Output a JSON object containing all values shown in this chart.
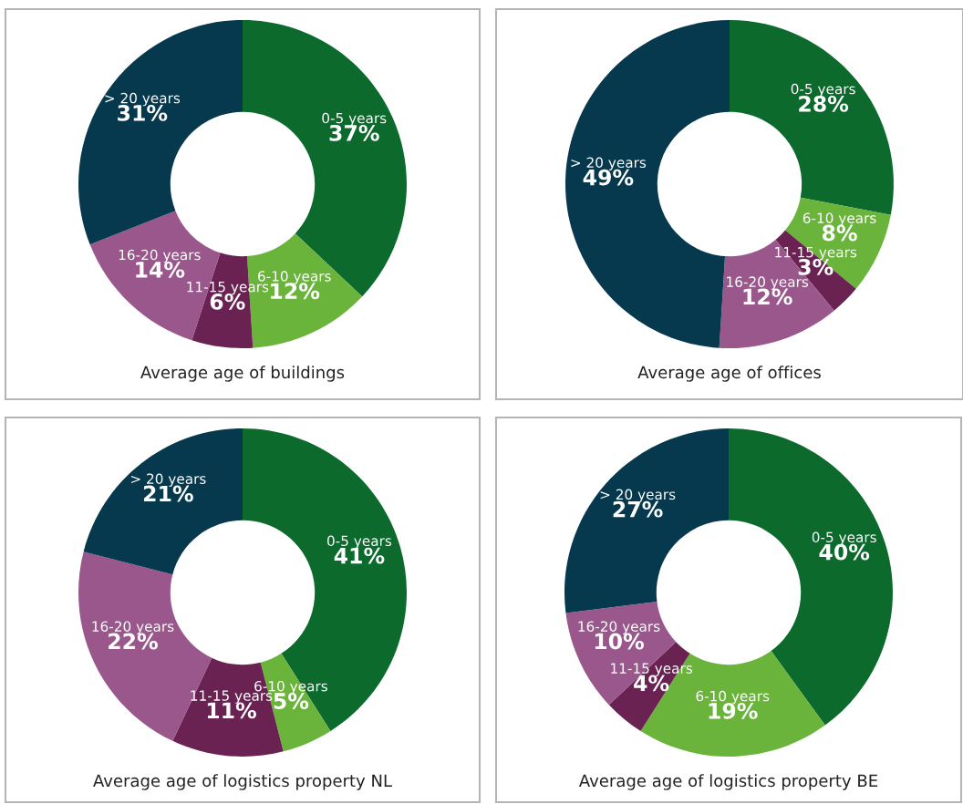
{
  "chart_data": [
    {
      "type": "donut",
      "title": "Average age of buildings",
      "categories": [
        "0-5 years",
        "6-10 years",
        "11-15 years",
        "16-20 years",
        "> 20 years"
      ],
      "values": [
        37,
        12,
        6,
        14,
        31
      ],
      "value_labels": [
        "37%",
        "12%",
        "6%",
        "14%",
        "31%"
      ],
      "colors": [
        "#0b6a2c",
        "#6ab43c",
        "#6a2252",
        "#99578c",
        "#06384e"
      ],
      "legend": false
    },
    {
      "type": "donut",
      "title": "Average age of offices",
      "categories": [
        "0-5 years",
        "6-10 years",
        "11-15 years",
        "16-20 years",
        "> 20 years"
      ],
      "values": [
        28,
        8,
        3,
        12,
        49
      ],
      "value_labels": [
        "28%",
        "8%",
        "3%",
        "12%",
        "49%"
      ],
      "colors": [
        "#0b6a2c",
        "#6ab43c",
        "#6a2252",
        "#99578c",
        "#06384e"
      ],
      "legend": false
    },
    {
      "type": "donut",
      "title": "Average age of logistics property NL",
      "categories": [
        "0-5 years",
        "6-10 years",
        "11-15 years",
        "16-20 years",
        "> 20 years"
      ],
      "values": [
        41,
        5,
        11,
        22,
        21
      ],
      "value_labels": [
        "41%",
        "5%",
        "11%",
        "22%",
        "21%"
      ],
      "colors": [
        "#0b6a2c",
        "#6ab43c",
        "#6a2252",
        "#99578c",
        "#06384e"
      ],
      "legend": false
    },
    {
      "type": "donut",
      "title": "Average age of logistics property BE",
      "categories": [
        "0-5 years",
        "6-10 years",
        "11-15 years",
        "16-20 years",
        "> 20 years"
      ],
      "values": [
        40,
        19,
        4,
        10,
        27
      ],
      "value_labels": [
        "40%",
        "19%",
        "4%",
        "10%",
        "27%"
      ],
      "colors": [
        "#0b6a2c",
        "#6ab43c",
        "#6a2252",
        "#99578c",
        "#06384e"
      ],
      "legend": false
    }
  ]
}
